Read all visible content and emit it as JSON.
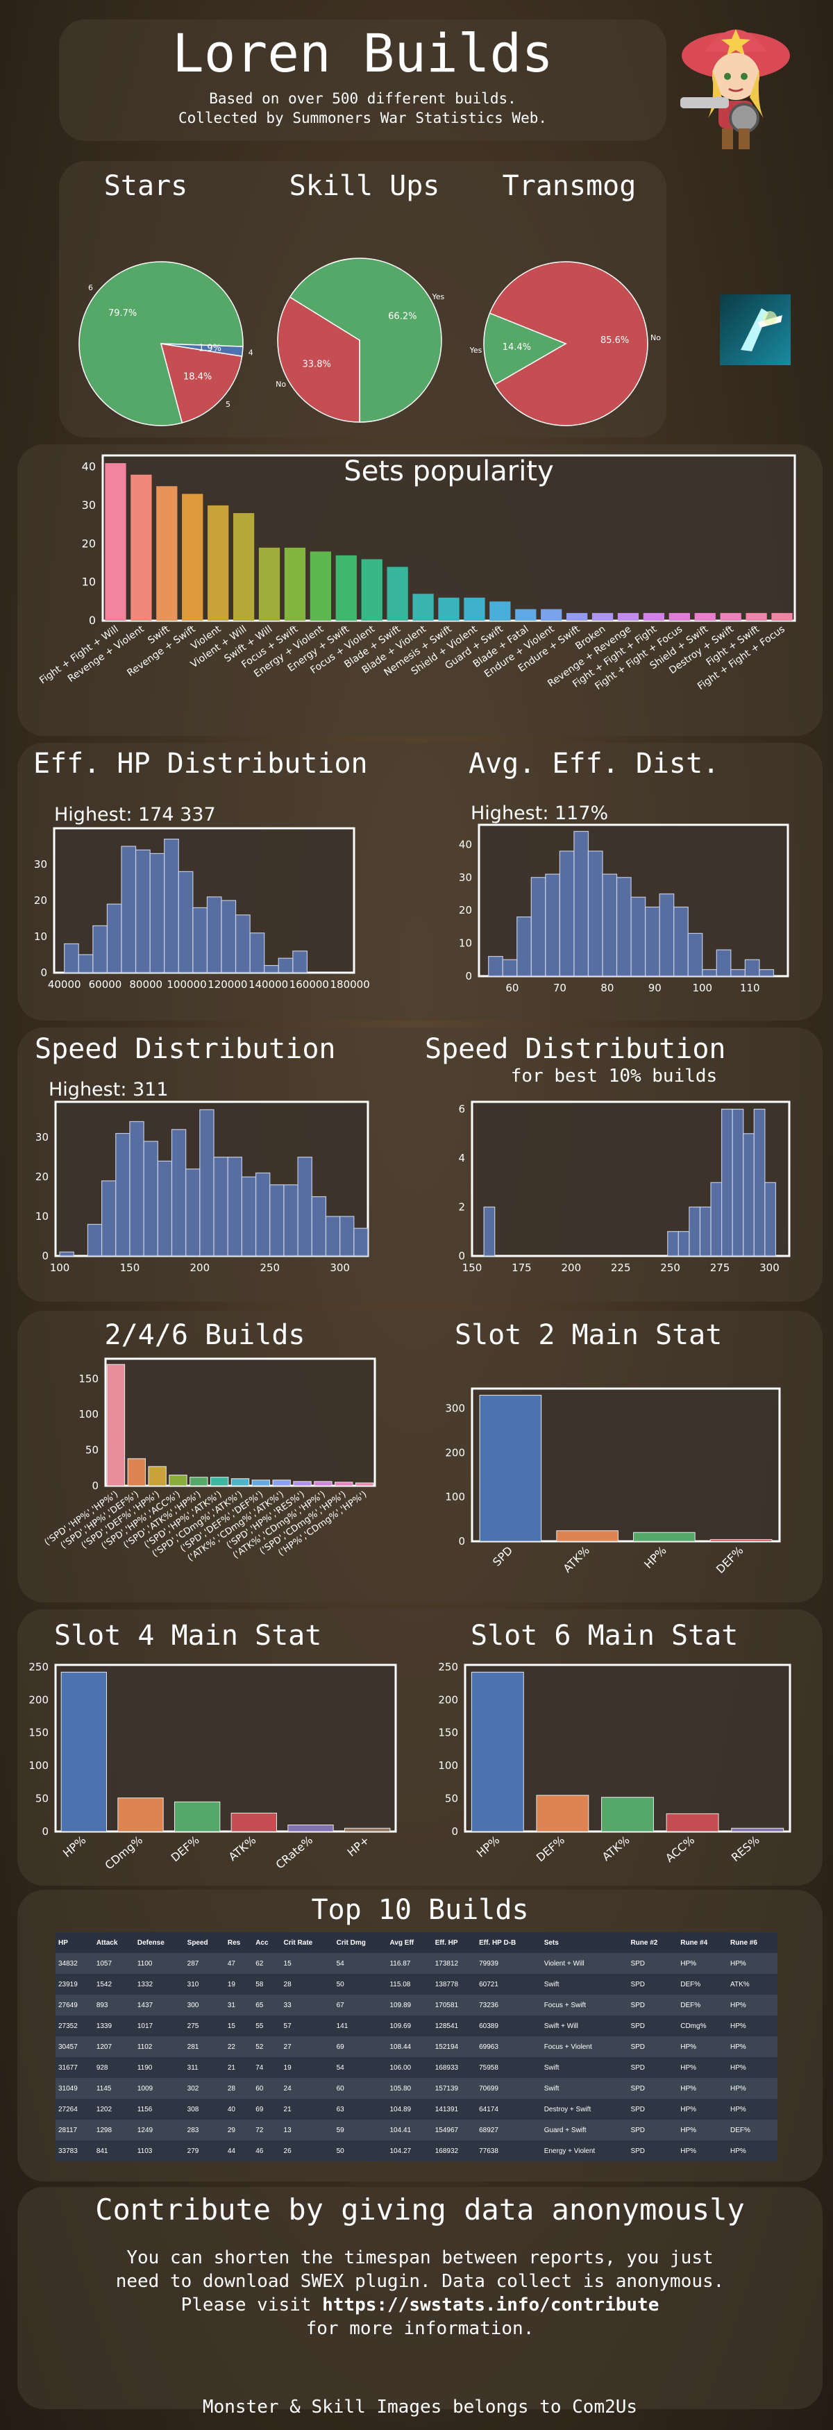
{
  "header": {
    "title": "Loren Builds",
    "sub1": "Based on over 500 different builds.",
    "sub2": "Collected by Summoners War Statistics Web."
  },
  "colors": {
    "bar_blue": "#5a72a8",
    "green": "#58a86a",
    "red": "#c44e52",
    "blue": "#4c72b0",
    "orange": "#dd8452",
    "pink": "#e88d9b"
  },
  "pies": [
    {
      "title": "Stars",
      "slices": [
        {
          "label": "6",
          "value": 79.7,
          "color": "#55a868"
        },
        {
          "label": "5",
          "value": 18.4,
          "color": "#c44e52"
        },
        {
          "label": "4",
          "value": 1.9,
          "color": "#4c72b0"
        }
      ],
      "pct_labels": [
        "79.7%",
        "18.4%",
        "1.9%"
      ]
    },
    {
      "title": "Skill Ups",
      "slices": [
        {
          "label": "Yes",
          "value": 66.2,
          "color": "#55a868"
        },
        {
          "label": "No",
          "value": 33.8,
          "color": "#c44e52"
        }
      ],
      "pct_labels": [
        "66.2%",
        "33.8%"
      ]
    },
    {
      "title": "Transmog",
      "slices": [
        {
          "label": "No",
          "value": 85.6,
          "color": "#c44e52"
        },
        {
          "label": "Yes",
          "value": 14.4,
          "color": "#55a868"
        }
      ],
      "pct_labels": [
        "85.6%",
        "14.4%"
      ]
    }
  ],
  "chart_data": [
    {
      "type": "bar",
      "title": "Sets popularity",
      "categories": [
        "Fight + Fight + Will",
        "Revenge + Violent",
        "Swift",
        "Revenge + Swift",
        "Violent",
        "Violent + Will",
        "Swift + Will",
        "Focus + Swift",
        "Energy + Violent",
        "Energy + Swift",
        "Focus + Violent",
        "Blade + Swift",
        "Blade + Violent",
        "Nemesis + Swift",
        "Shield + Violent",
        "Guard + Swift",
        "Blade + Fatal",
        "Endure + Violent",
        "Endure + Swift",
        "Broken",
        "Revenge + Revenge",
        "Fight + Fight + Fight",
        "Fight + Fight + Focus",
        "Shield + Swift",
        "Destroy + Swift",
        "Fight + Swift",
        "Fight + Fight + Focus"
      ],
      "values": [
        41,
        38,
        35,
        33,
        30,
        28,
        19,
        19,
        18,
        17,
        16,
        14,
        7,
        6,
        6,
        5,
        3,
        3,
        2,
        2,
        2,
        2,
        2,
        2,
        2,
        2,
        2
      ],
      "ylim": [
        0,
        43
      ]
    },
    {
      "type": "bar",
      "title": "Eff. HP Distribution",
      "subtitle": "Highest: 174 337",
      "bins_start": 40000,
      "bin_width": 7000,
      "values": [
        8,
        5,
        13,
        19,
        35,
        34,
        33,
        37,
        28,
        18,
        21,
        20,
        16,
        11,
        2,
        4,
        6
      ],
      "xticks": [
        40000,
        60000,
        80000,
        100000,
        120000,
        140000,
        160000,
        180000
      ],
      "xlim": [
        35000,
        182000
      ],
      "yticks": [
        0,
        10,
        20,
        30
      ],
      "ylim": [
        0,
        40
      ]
    },
    {
      "type": "bar",
      "title": "Avg. Eff. Dist.",
      "subtitle": "Highest: 117%",
      "bins_start": 55,
      "bin_width": 3,
      "values": [
        6,
        5,
        18,
        30,
        31,
        38,
        44,
        38,
        31,
        30,
        24,
        21,
        25,
        21,
        13,
        2,
        8,
        2,
        5,
        2
      ],
      "xticks": [
        60,
        70,
        80,
        90,
        100,
        110
      ],
      "xlim": [
        53,
        118
      ],
      "yticks": [
        0,
        10,
        20,
        30,
        40
      ],
      "ylim": [
        0,
        46
      ]
    },
    {
      "type": "bar",
      "title": "Speed Distribution",
      "subtitle": "Highest: 311",
      "bins_start": 100,
      "bin_width": 10,
      "values": [
        1,
        0,
        8,
        19,
        31,
        34,
        29,
        24,
        32,
        22,
        37,
        25,
        25,
        20,
        21,
        18,
        18,
        25,
        15,
        10,
        10,
        7
      ],
      "xticks": [
        100,
        150,
        200,
        250,
        300
      ],
      "xlim": [
        97,
        320
      ],
      "yticks": [
        0,
        10,
        20,
        30
      ],
      "ylim": [
        0,
        39
      ]
    },
    {
      "type": "bar",
      "title": "Speed Distribution",
      "subtitle": "for best 10% builds",
      "bins_start": 156,
      "bin_width": 5.45,
      "values": [
        2,
        0,
        0,
        0,
        0,
        0,
        0,
        0,
        0,
        0,
        0,
        0,
        0,
        0,
        0,
        0,
        0,
        1,
        1,
        2,
        2,
        3,
        6,
        6,
        5,
        6,
        3
      ],
      "xticks": [
        150,
        175,
        200,
        225,
        250,
        275,
        300
      ],
      "xlim": [
        150,
        310
      ],
      "yticks": [
        0,
        2,
        4,
        6
      ],
      "ylim": [
        0,
        6.3
      ]
    },
    {
      "type": "bar",
      "title": "2/4/6 Builds",
      "categories": [
        "('SPD','HP%','HP%')",
        "('SPD','HP%','DEF%')",
        "('SPD','DEF%','HP%')",
        "('SPD','HP%','ACC%')",
        "('SPD','ATK%','HP%')",
        "('SPD','HP%','ATK%')",
        "('SPD','CDmg%','ATK%')",
        "('SPD','DEF%','DEF%')",
        "('ATK%','CDmg%','ATK%')",
        "('SPD','HP%','RES%')",
        "('ATK%','CDmg%','HP%')",
        "('SPD','CDmg%','HP%')",
        "('HP%','CDmg%','HP%')"
      ],
      "values": [
        170,
        38,
        27,
        15,
        12,
        12,
        10,
        8,
        8,
        6,
        6,
        5,
        4
      ],
      "yticks": [
        0,
        50,
        100,
        150
      ],
      "ylim": [
        0,
        178
      ]
    },
    {
      "type": "bar",
      "title": "Slot 2 Main Stat",
      "categories": [
        "SPD",
        "ATK%",
        "HP%",
        "DEF%"
      ],
      "values": [
        330,
        24,
        20,
        4
      ],
      "yticks": [
        0,
        100,
        200,
        300
      ],
      "ylim": [
        0,
        345
      ]
    },
    {
      "type": "bar",
      "title": "Slot 4 Main Stat",
      "categories": [
        "HP%",
        "CDmg%",
        "DEF%",
        "ATK%",
        "CRate%",
        "HP+"
      ],
      "values": [
        242,
        51,
        45,
        28,
        10,
        5
      ],
      "yticks": [
        0,
        50,
        100,
        150,
        200,
        250
      ],
      "ylim": [
        0,
        253
      ]
    },
    {
      "type": "bar",
      "title": "Slot 6 Main Stat",
      "categories": [
        "HP%",
        "DEF%",
        "ATK%",
        "ACC%",
        "RES%"
      ],
      "values": [
        242,
        55,
        52,
        27,
        5
      ],
      "yticks": [
        0,
        50,
        100,
        150,
        200,
        250
      ],
      "ylim": [
        0,
        253
      ]
    }
  ],
  "builds": {
    "title": "Top 10 Builds",
    "headers": [
      "HP",
      "Attack",
      "Defense",
      "Speed",
      "Res",
      "Acc",
      "Crit Rate",
      "Crit Dmg",
      "Avg Eff",
      "Eff. HP",
      "Eff. HP D-B",
      "Sets",
      "Rune #2",
      "Rune #4",
      "Rune #6"
    ],
    "rows": [
      [
        "34832",
        "1057",
        "1100",
        "287",
        "47",
        "62",
        "15",
        "54",
        "116.87",
        "173812",
        "79939",
        "Violent + Will",
        "SPD",
        "HP%",
        "HP%"
      ],
      [
        "23919",
        "1542",
        "1332",
        "310",
        "19",
        "58",
        "28",
        "50",
        "115.08",
        "138778",
        "60721",
        "Swift",
        "SPD",
        "DEF%",
        "ATK%"
      ],
      [
        "27649",
        "893",
        "1437",
        "300",
        "31",
        "65",
        "33",
        "67",
        "109.89",
        "170581",
        "73236",
        "Focus + Swift",
        "SPD",
        "DEF%",
        "HP%"
      ],
      [
        "27352",
        "1339",
        "1017",
        "275",
        "15",
        "55",
        "57",
        "141",
        "109.69",
        "128541",
        "60389",
        "Swift + Will",
        "SPD",
        "CDmg%",
        "HP%"
      ],
      [
        "30457",
        "1207",
        "1102",
        "281",
        "22",
        "52",
        "27",
        "69",
        "108.44",
        "152194",
        "69963",
        "Focus + Violent",
        "SPD",
        "HP%",
        "HP%"
      ],
      [
        "31677",
        "928",
        "1190",
        "311",
        "21",
        "74",
        "19",
        "54",
        "106.00",
        "168933",
        "75958",
        "Swift",
        "SPD",
        "HP%",
        "HP%"
      ],
      [
        "31049",
        "1145",
        "1009",
        "302",
        "28",
        "60",
        "24",
        "60",
        "105.80",
        "157139",
        "70699",
        "Swift",
        "SPD",
        "HP%",
        "HP%"
      ],
      [
        "27264",
        "1202",
        "1156",
        "308",
        "40",
        "69",
        "21",
        "63",
        "104.89",
        "141391",
        "64174",
        "Destroy + Swift",
        "SPD",
        "HP%",
        "HP%"
      ],
      [
        "28117",
        "1298",
        "1249",
        "283",
        "29",
        "72",
        "13",
        "59",
        "104.41",
        "154967",
        "68927",
        "Guard + Swift",
        "SPD",
        "HP%",
        "DEF%"
      ],
      [
        "33783",
        "841",
        "1103",
        "279",
        "44",
        "46",
        "26",
        "50",
        "104.27",
        "168932",
        "77638",
        "Energy + Violent",
        "SPD",
        "HP%",
        "HP%"
      ]
    ]
  },
  "contribute": {
    "title": "Contribute by giving data anonymously",
    "line1": "You can shorten the timespan between reports, you just",
    "line2": "need to download SWEX plugin. Data collect is anonymous.",
    "line3_pre": "Please visit ",
    "link": "https://swstats.info/contribute",
    "line4": "for more information."
  },
  "footer": "Monster & Skill Images belongs to Com2Us"
}
